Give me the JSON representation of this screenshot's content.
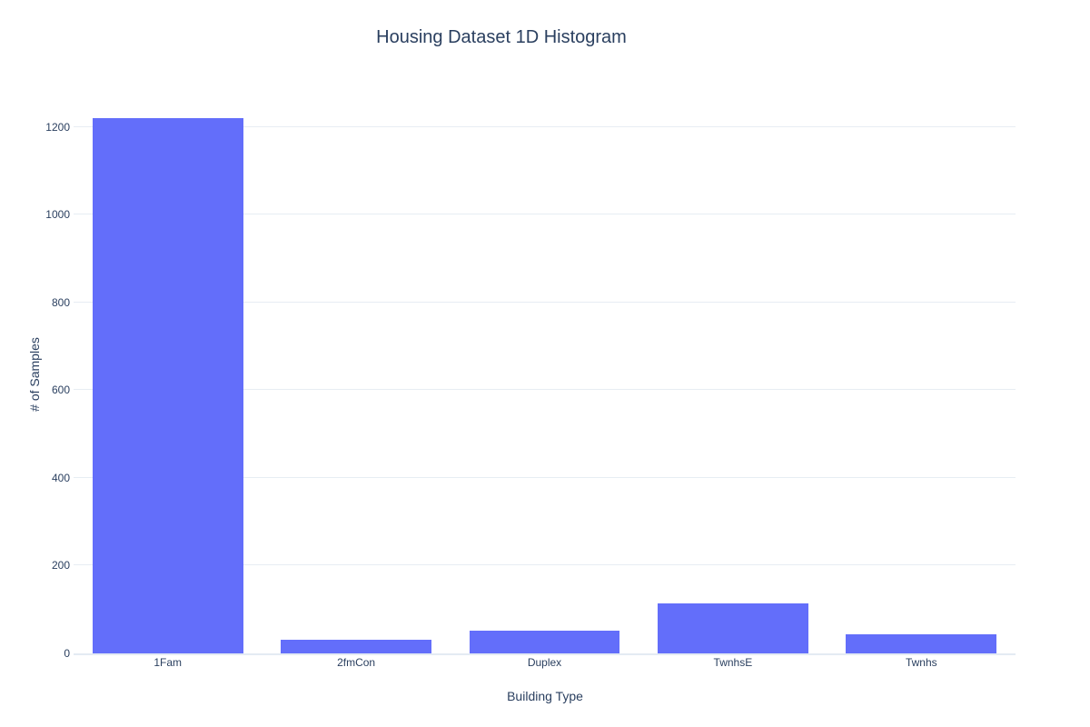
{
  "page": {
    "background_color": "#ffffff"
  },
  "chart_data": {
    "type": "bar",
    "title": "Housing Dataset 1D Histogram",
    "xlabel": "Building Type",
    "ylabel": "# of Samples",
    "categories": [
      "1Fam",
      "2fmCon",
      "Duplex",
      "TwnhsE",
      "Twnhs"
    ],
    "values": [
      1220,
      31,
      52,
      114,
      43
    ],
    "yticks": [
      0,
      200,
      400,
      600,
      800,
      1000,
      1200
    ],
    "ylim": [
      0,
      1270
    ],
    "grid": true,
    "legend": "none",
    "bar_gap": 0.2,
    "colors": {
      "bar": "#636efa",
      "grid_line": "#e7edf3",
      "zero_line": "#e4ebf3",
      "text": "#2a3f5f"
    }
  }
}
